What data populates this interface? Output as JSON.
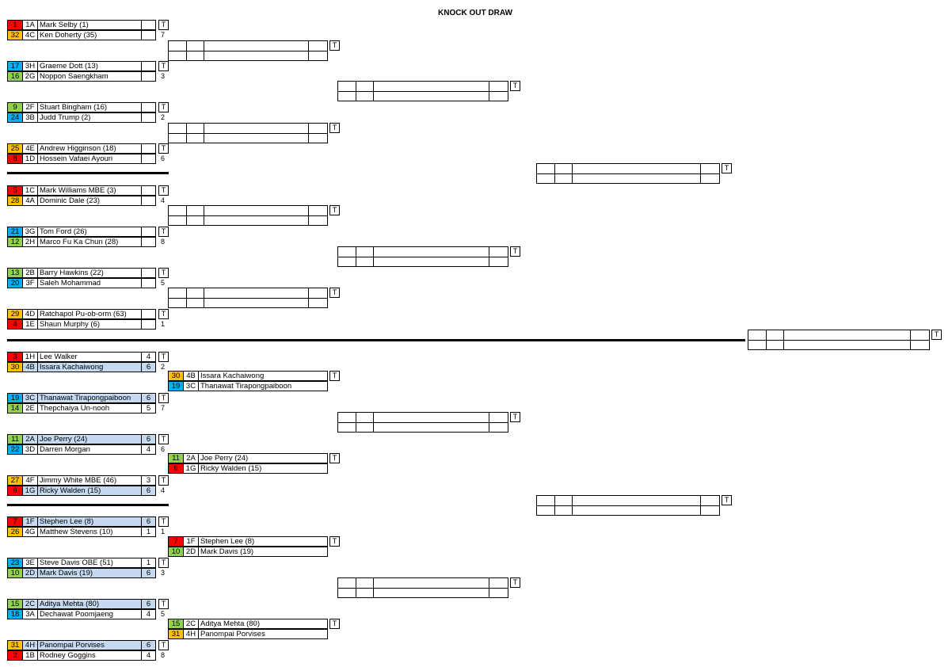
{
  "title": "KNOCK OUT DRAW",
  "colors": {
    "red": "#ff0000",
    "orange": "#ffc000",
    "blue": "#00b0f0",
    "green": "#92d050",
    "highlight": "#c5d9f1"
  },
  "round1": [
    [
      {
        "seed": "1",
        "grp": "1A",
        "name": "Mark Selby (1)",
        "score": "",
        "color": "red",
        "hl": false
      },
      {
        "seed": "32",
        "grp": "4C",
        "name": "Ken Doherty (35)",
        "score": "",
        "color": "orange",
        "hl": false
      },
      "T",
      "7"
    ],
    [
      {
        "seed": "17",
        "grp": "3H",
        "name": "Graeme Dott (13)",
        "score": "",
        "color": "blue",
        "hl": false
      },
      {
        "seed": "16",
        "grp": "2G",
        "name": "Noppon Saengkham",
        "score": "",
        "color": "green",
        "hl": false
      },
      "T",
      "3"
    ],
    [
      {
        "seed": "9",
        "grp": "2F",
        "name": "Stuart Bingham (16)",
        "score": "",
        "color": "green",
        "hl": false
      },
      {
        "seed": "24",
        "grp": "3B",
        "name": "Judd Trump (2)",
        "score": "",
        "color": "blue",
        "hl": false
      },
      "T",
      "2"
    ],
    [
      {
        "seed": "25",
        "grp": "4E",
        "name": "Andrew Higginson (18)",
        "score": "",
        "color": "orange",
        "hl": false
      },
      {
        "seed": "8",
        "grp": "1D",
        "name": "Hossein Vafaei Ayouri",
        "score": "",
        "color": "red",
        "hl": false
      },
      "T",
      "6"
    ],
    [
      {
        "seed": "5",
        "grp": "1C",
        "name": "Mark Williams MBE (3)",
        "score": "",
        "color": "red",
        "hl": false
      },
      {
        "seed": "28",
        "grp": "4A",
        "name": "Dominic Dale (23)",
        "score": "",
        "color": "orange",
        "hl": false
      },
      "T",
      "4"
    ],
    [
      {
        "seed": "21",
        "grp": "3G",
        "name": "Tom Ford (26)",
        "score": "",
        "color": "blue",
        "hl": false
      },
      {
        "seed": "12",
        "grp": "2H",
        "name": "Marco Fu Ka Chun (28)",
        "score": "",
        "color": "green",
        "hl": false
      },
      "T",
      "8"
    ],
    [
      {
        "seed": "13",
        "grp": "2B",
        "name": "Barry Hawkins (22)",
        "score": "",
        "color": "green",
        "hl": false
      },
      {
        "seed": "20",
        "grp": "3F",
        "name": "Saleh Mohammad",
        "score": "",
        "color": "blue",
        "hl": false
      },
      "T",
      "5"
    ],
    [
      {
        "seed": "29",
        "grp": "4D",
        "name": "Ratchapol Pu-ob-orm (63)",
        "score": "",
        "color": "orange",
        "hl": false
      },
      {
        "seed": "4",
        "grp": "1E",
        "name": "Shaun Murphy (6)",
        "score": "",
        "color": "red",
        "hl": false
      },
      "T",
      "1"
    ],
    [
      {
        "seed": "3",
        "grp": "1H",
        "name": "Lee Walker",
        "score": "4",
        "color": "red",
        "hl": false
      },
      {
        "seed": "30",
        "grp": "4B",
        "name": "Issara Kachaiwong",
        "score": "6",
        "color": "orange",
        "hl": true
      },
      "T",
      "2"
    ],
    [
      {
        "seed": "19",
        "grp": "3C",
        "name": "Thanawat Tirapongpaiboon",
        "score": "6",
        "color": "blue",
        "hl": true
      },
      {
        "seed": "14",
        "grp": "2E",
        "name": "Thepchaiya Un-nooh",
        "score": "5",
        "color": "green",
        "hl": false
      },
      "T",
      "7"
    ],
    [
      {
        "seed": "11",
        "grp": "2A",
        "name": "Joe Perry (24)",
        "score": "6",
        "color": "green",
        "hl": true
      },
      {
        "seed": "22",
        "grp": "3D",
        "name": "Darren Morgan",
        "score": "4",
        "color": "blue",
        "hl": false
      },
      "T",
      "6"
    ],
    [
      {
        "seed": "27",
        "grp": "4F",
        "name": "Jimmy White MBE (46)",
        "score": "3",
        "color": "orange",
        "hl": false
      },
      {
        "seed": "6",
        "grp": "1G",
        "name": "Ricky Walden (15)",
        "score": "6",
        "color": "red",
        "hl": true
      },
      "T",
      "4"
    ],
    [
      {
        "seed": "7",
        "grp": "1F",
        "name": "Stephen Lee (8)",
        "score": "6",
        "color": "red",
        "hl": true
      },
      {
        "seed": "26",
        "grp": "4G",
        "name": "Matthew Stevens (10)",
        "score": "1",
        "color": "orange",
        "hl": false
      },
      "T",
      "1"
    ],
    [
      {
        "seed": "23",
        "grp": "3E",
        "name": "Steve Davis OBE (51)",
        "score": "1",
        "color": "blue",
        "hl": false
      },
      {
        "seed": "10",
        "grp": "2D",
        "name": "Mark Davis (19)",
        "score": "6",
        "color": "green",
        "hl": true
      },
      "T",
      "3"
    ],
    [
      {
        "seed": "15",
        "grp": "2C",
        "name": "Aditya Mehta (80)",
        "score": "6",
        "color": "green",
        "hl": true
      },
      {
        "seed": "18",
        "grp": "3A",
        "name": "Dechawat Poomjaeng",
        "score": "4",
        "color": "blue",
        "hl": false
      },
      "T",
      "5"
    ],
    [
      {
        "seed": "31",
        "grp": "4H",
        "name": "Panompai Porvises",
        "score": "6",
        "color": "orange",
        "hl": true
      },
      {
        "seed": "2",
        "grp": "1B",
        "name": "Rodney Goggins",
        "score": "4",
        "color": "red",
        "hl": false
      },
      "T",
      "8"
    ]
  ],
  "round2": [
    {
      "filled": false,
      "t": "T"
    },
    {
      "filled": false,
      "t": "T"
    },
    {
      "filled": false,
      "t": "T"
    },
    {
      "filled": false,
      "t": "T"
    },
    {
      "filled": true,
      "t": "T",
      "top": {
        "seed": "30",
        "grp": "4B",
        "name": "Issara Kachaiwong",
        "color": "orange"
      },
      "bot": {
        "seed": "19",
        "grp": "3C",
        "name": "Thanawat Tirapongpaiboon",
        "color": "blue"
      }
    },
    {
      "filled": true,
      "t": "T",
      "top": {
        "seed": "11",
        "grp": "2A",
        "name": "Joe Perry (24)",
        "color": "green"
      },
      "bot": {
        "seed": "6",
        "grp": "1G",
        "name": "Ricky Walden (15)",
        "color": "red"
      }
    },
    {
      "filled": true,
      "t": "T",
      "top": {
        "seed": "7",
        "grp": "1F",
        "name": "Stephen Lee (8)",
        "color": "red"
      },
      "bot": {
        "seed": "10",
        "grp": "2D",
        "name": "Mark Davis (19)",
        "color": "green"
      }
    },
    {
      "filled": true,
      "t": "T",
      "top": {
        "seed": "15",
        "grp": "2C",
        "name": "Aditya Mehta (80)",
        "color": "green"
      },
      "bot": {
        "seed": "31",
        "grp": "4H",
        "name": "Panompai Porvises",
        "color": "orange"
      }
    }
  ],
  "round3_t": [
    "T",
    "T",
    "T",
    "T"
  ],
  "round4_t": [
    "T",
    "T"
  ],
  "final_t": "T"
}
